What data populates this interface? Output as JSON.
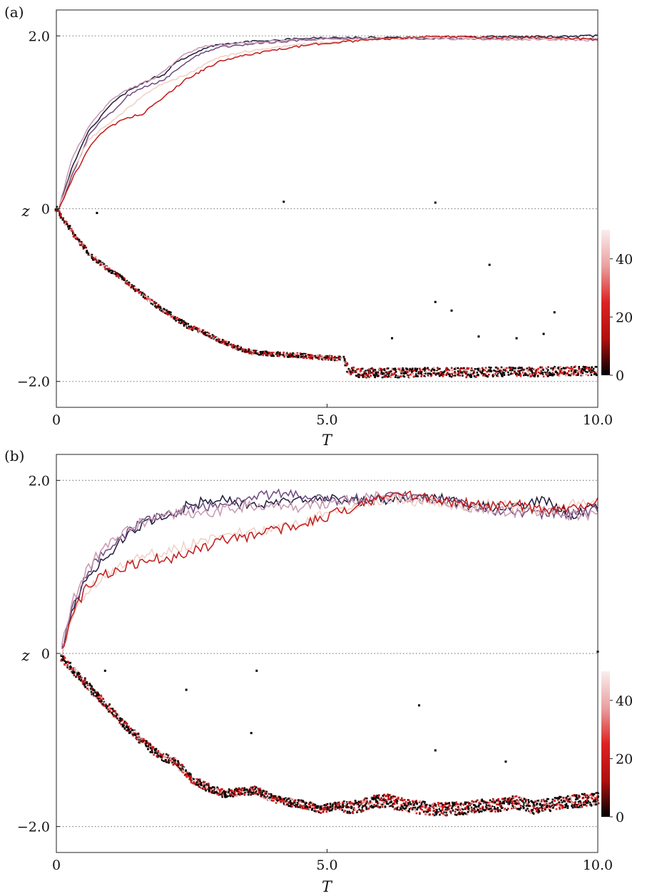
{
  "chart_data": [
    {
      "type": "scatter",
      "panel_label": "(a)",
      "xlabel": "T",
      "ylabel": "z",
      "xlim": [
        0,
        10.0
      ],
      "ylim": [
        -2.3,
        2.3
      ],
      "xticks": [
        0,
        5.0,
        10.0
      ],
      "xtick_labels": [
        "0",
        "5.0",
        "10.0"
      ],
      "yticks": [
        -2.0,
        0,
        2.0
      ],
      "ytick_labels": [
        "−2.0",
        "0",
        "2.0"
      ],
      "reference_lines_y": [
        -2.0,
        0,
        2.0
      ],
      "colorbar": {
        "ticks": [
          0,
          20,
          40
        ],
        "tick_labels": [
          "0",
          "20",
          "40"
        ],
        "range": [
          0,
          50
        ],
        "colors": [
          "#000000",
          "#b01010",
          "#dd2222",
          "#e9a0a0",
          "#fbeeee"
        ]
      },
      "series": [
        {
          "color": "#1e1b3a",
          "x": [
            0.05,
            0.3,
            0.6,
            0.8,
            1.0,
            1.3,
            1.6,
            1.8,
            2.0,
            2.2,
            2.4,
            2.7,
            3.0,
            3.5,
            4.0,
            4.5,
            5.0,
            6.0,
            7.0,
            8.0,
            9.0,
            10.0
          ],
          "y": [
            0.0,
            0.5,
            0.9,
            1.05,
            1.2,
            1.35,
            1.45,
            1.52,
            1.55,
            1.7,
            1.75,
            1.85,
            1.9,
            1.93,
            1.95,
            1.97,
            1.98,
            1.98,
            1.98,
            1.99,
            1.99,
            2.0
          ]
        },
        {
          "color": "#6e4a7e",
          "x": [
            0.05,
            0.3,
            0.6,
            0.8,
            1.0,
            1.3,
            1.6,
            1.8,
            2.0,
            2.2,
            2.4,
            2.7,
            3.0,
            3.5,
            4.0,
            4.5,
            5.0,
            6.0,
            7.0,
            8.0,
            9.0,
            10.0
          ],
          "y": [
            0.0,
            0.4,
            0.85,
            1.0,
            1.1,
            1.3,
            1.4,
            1.45,
            1.5,
            1.6,
            1.7,
            1.8,
            1.87,
            1.9,
            1.93,
            1.95,
            1.97,
            1.97,
            1.97,
            1.97,
            1.97,
            1.96
          ]
        },
        {
          "color": "#c998b0",
          "x": [
            0.05,
            0.3,
            0.6,
            0.8,
            1.0,
            1.3,
            1.6,
            1.8,
            2.0,
            2.2,
            2.4,
            2.7,
            3.0,
            3.5,
            4.0,
            4.5,
            5.0,
            6.0,
            7.0,
            8.0,
            9.0,
            10.0
          ],
          "y": [
            0.02,
            0.6,
            0.95,
            1.1,
            1.25,
            1.38,
            1.45,
            1.5,
            1.6,
            1.7,
            1.8,
            1.87,
            1.9,
            1.92,
            1.94,
            1.96,
            1.97,
            1.97,
            1.97,
            1.96,
            1.96,
            1.95
          ]
        },
        {
          "color": "#f1cfc6",
          "x": [
            0.05,
            0.3,
            0.6,
            0.8,
            1.0,
            1.3,
            1.6,
            1.8,
            2.0,
            2.2,
            2.4,
            2.7,
            3.0,
            3.5,
            4.0,
            4.5,
            5.0,
            6.0,
            7.0,
            8.0,
            9.0,
            10.0
          ],
          "y": [
            0.0,
            0.45,
            0.8,
            0.9,
            1.0,
            1.15,
            1.3,
            1.4,
            1.45,
            1.5,
            1.55,
            1.65,
            1.75,
            1.82,
            1.86,
            1.9,
            1.93,
            1.97,
            1.98,
            1.98,
            1.97,
            1.96
          ]
        },
        {
          "color": "#c11a1a",
          "x": [
            0.05,
            0.3,
            0.6,
            0.8,
            1.0,
            1.3,
            1.6,
            1.8,
            2.0,
            2.2,
            2.4,
            2.7,
            3.0,
            3.5,
            4.0,
            4.5,
            5.0,
            6.0,
            7.0,
            8.0,
            9.0,
            10.0
          ],
          "y": [
            0.0,
            0.35,
            0.7,
            0.85,
            0.95,
            1.05,
            1.1,
            1.2,
            1.3,
            1.4,
            1.5,
            1.6,
            1.7,
            1.78,
            1.83,
            1.88,
            1.92,
            1.96,
            2.0,
            1.98,
            1.98,
            1.96
          ]
        }
      ],
      "density_ridge": {
        "x": [
          0.0,
          0.3,
          0.6,
          0.9,
          1.2,
          1.5,
          1.8,
          2.1,
          2.4,
          2.7,
          3.0,
          3.3,
          3.6,
          3.9,
          4.2,
          4.5,
          4.8,
          5.1,
          5.3,
          5.4,
          5.6,
          6.0,
          6.5,
          7.0,
          7.5,
          8.0,
          8.5,
          9.0,
          9.5,
          10.0
        ],
        "y": [
          0.0,
          -0.28,
          -0.52,
          -0.68,
          -0.8,
          -0.95,
          -1.1,
          -1.22,
          -1.35,
          -1.43,
          -1.52,
          -1.6,
          -1.66,
          -1.68,
          -1.69,
          -1.7,
          -1.72,
          -1.73,
          -1.73,
          -1.88,
          -1.9,
          -1.9,
          -1.9,
          -1.89,
          -1.9,
          -1.89,
          -1.89,
          -1.89,
          -1.88,
          -1.88
        ]
      },
      "isolated_points": [
        [
          0.75,
          -0.05
        ],
        [
          4.2,
          0.08
        ],
        [
          7.0,
          0.07
        ],
        [
          8.0,
          -0.65
        ],
        [
          7.0,
          -1.08
        ],
        [
          7.3,
          -1.18
        ],
        [
          9.2,
          -1.2
        ],
        [
          6.2,
          -1.5
        ],
        [
          7.8,
          -1.48
        ],
        [
          8.5,
          -1.5
        ],
        [
          9.0,
          -1.45
        ]
      ]
    },
    {
      "type": "scatter",
      "panel_label": "(b)",
      "xlabel": "T",
      "ylabel": "z",
      "xlim": [
        0,
        10.0
      ],
      "ylim": [
        -2.3,
        2.3
      ],
      "xticks": [
        0,
        5.0,
        10.0
      ],
      "xtick_labels": [
        "0",
        "5.0",
        "10.0"
      ],
      "yticks": [
        -2.0,
        0,
        2.0
      ],
      "ytick_labels": [
        "−2.0",
        "0",
        "2.0"
      ],
      "reference_lines_y": [
        -2.0,
        0,
        2.0
      ],
      "colorbar": {
        "ticks": [
          0,
          20,
          40
        ],
        "tick_labels": [
          "0",
          "20",
          "40"
        ],
        "range": [
          0,
          50
        ],
        "colors": [
          "#000000",
          "#b01010",
          "#dd2222",
          "#e9a0a0",
          "#fbeeee"
        ]
      },
      "series": [
        {
          "color": "#1e1b3a",
          "x": [
            0.1,
            0.3,
            0.6,
            0.9,
            1.2,
            1.5,
            1.8,
            2.1,
            2.4,
            2.7,
            3.0,
            3.5,
            4.0,
            4.5,
            5.0,
            5.5,
            6.0,
            6.5,
            7.0,
            7.5,
            8.0,
            8.5,
            9.0,
            9.5,
            10.0
          ],
          "y": [
            0.0,
            0.5,
            0.9,
            1.1,
            1.3,
            1.45,
            1.55,
            1.6,
            1.7,
            1.75,
            1.78,
            1.72,
            1.74,
            1.76,
            1.8,
            1.75,
            1.78,
            1.76,
            1.8,
            1.72,
            1.7,
            1.68,
            1.78,
            1.6,
            1.7
          ]
        },
        {
          "color": "#6e4a7e",
          "x": [
            0.1,
            0.3,
            0.6,
            0.9,
            1.2,
            1.5,
            1.8,
            2.1,
            2.4,
            2.7,
            3.0,
            3.5,
            4.0,
            4.5,
            5.0,
            5.5,
            6.0,
            6.5,
            7.0,
            7.5,
            8.0,
            8.5,
            9.0,
            9.5,
            10.0
          ],
          "y": [
            0.05,
            0.55,
            0.95,
            1.2,
            1.35,
            1.48,
            1.56,
            1.62,
            1.66,
            1.7,
            1.7,
            1.78,
            1.85,
            1.82,
            1.76,
            1.78,
            1.8,
            1.82,
            1.78,
            1.74,
            1.66,
            1.64,
            1.62,
            1.6,
            1.66
          ]
        },
        {
          "color": "#c998b0",
          "x": [
            0.1,
            0.3,
            0.6,
            0.9,
            1.2,
            1.5,
            1.8,
            2.1,
            2.4,
            2.7,
            3.0,
            3.5,
            4.0,
            4.5,
            5.0,
            5.5,
            6.0,
            6.5,
            7.0,
            7.5,
            8.0,
            8.5,
            9.0,
            9.5,
            10.0
          ],
          "y": [
            0.1,
            0.6,
            1.0,
            1.25,
            1.38,
            1.5,
            1.55,
            1.6,
            1.62,
            1.6,
            1.65,
            1.7,
            1.72,
            1.68,
            1.74,
            1.78,
            1.82,
            1.8,
            1.75,
            1.7,
            1.68,
            1.62,
            1.66,
            1.6,
            1.6
          ]
        },
        {
          "color": "#f1cfc6",
          "x": [
            0.1,
            0.3,
            0.6,
            0.9,
            1.2,
            1.5,
            1.8,
            2.1,
            2.4,
            2.7,
            3.0,
            3.5,
            4.0,
            4.5,
            5.0,
            5.5,
            6.0,
            6.5,
            7.0,
            7.5,
            8.0,
            8.5,
            9.0,
            9.5,
            10.0
          ],
          "y": [
            0.0,
            0.4,
            0.75,
            0.9,
            1.0,
            1.1,
            1.15,
            1.2,
            1.25,
            1.3,
            1.35,
            1.4,
            1.45,
            1.5,
            1.62,
            1.72,
            1.78,
            1.76,
            1.74,
            1.7,
            1.72,
            1.7,
            1.65,
            1.72,
            1.76
          ]
        },
        {
          "color": "#c11a1a",
          "x": [
            0.1,
            0.3,
            0.6,
            0.9,
            1.2,
            1.5,
            1.8,
            2.1,
            2.4,
            2.7,
            3.0,
            3.5,
            4.0,
            4.5,
            5.0,
            5.5,
            6.0,
            6.5,
            7.0,
            7.5,
            8.0,
            8.5,
            9.0,
            9.5,
            10.0
          ],
          "y": [
            0.0,
            0.45,
            0.8,
            0.92,
            0.98,
            1.05,
            1.1,
            1.08,
            1.15,
            1.22,
            1.3,
            1.35,
            1.42,
            1.48,
            1.58,
            1.7,
            1.8,
            1.82,
            1.78,
            1.74,
            1.7,
            1.72,
            1.65,
            1.7,
            1.75
          ]
        }
      ],
      "density_ridge": {
        "x": [
          0.1,
          0.4,
          0.7,
          1.0,
          1.3,
          1.6,
          1.9,
          2.2,
          2.5,
          2.8,
          3.1,
          3.4,
          3.7,
          4.0,
          4.3,
          4.6,
          4.9,
          5.2,
          5.5,
          5.8,
          6.1,
          6.4,
          6.7,
          7.0,
          7.3,
          7.6,
          7.9,
          8.2,
          8.5,
          8.8,
          9.1,
          9.4,
          9.7,
          10.0
        ],
        "y": [
          -0.05,
          -0.25,
          -0.45,
          -0.65,
          -0.85,
          -1.02,
          -1.18,
          -1.25,
          -1.45,
          -1.55,
          -1.62,
          -1.6,
          -1.58,
          -1.68,
          -1.72,
          -1.75,
          -1.8,
          -1.76,
          -1.78,
          -1.72,
          -1.7,
          -1.75,
          -1.78,
          -1.8,
          -1.8,
          -1.78,
          -1.76,
          -1.75,
          -1.72,
          -1.78,
          -1.75,
          -1.72,
          -1.7,
          -1.68
        ]
      },
      "isolated_points": [
        [
          0.9,
          -0.2
        ],
        [
          3.7,
          -0.2
        ],
        [
          2.4,
          -0.42
        ],
        [
          6.7,
          -0.6
        ],
        [
          3.6,
          -0.92
        ],
        [
          7.0,
          -1.12
        ],
        [
          8.3,
          -1.25
        ],
        [
          10.0,
          0.02
        ]
      ]
    }
  ]
}
